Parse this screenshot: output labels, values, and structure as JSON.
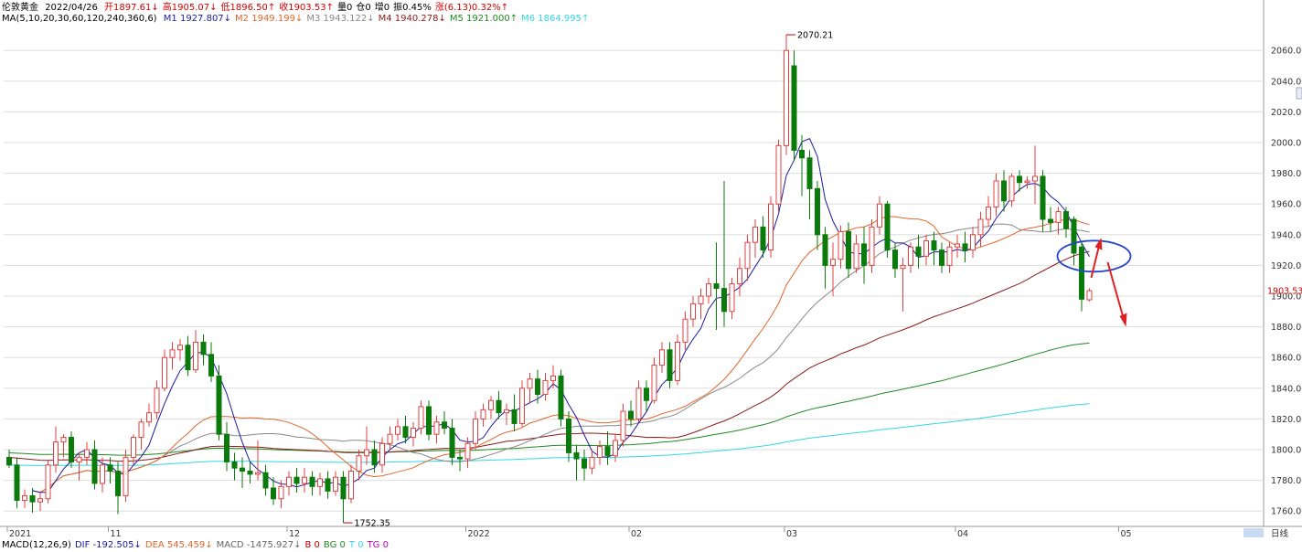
{
  "header": {
    "symbol": "伦敦黄金",
    "date": "2022/04/26",
    "stats": [
      {
        "text": "开1897.61↓",
        "color": "#d00000"
      },
      {
        "text": "高1905.07↓",
        "color": "#d00000"
      },
      {
        "text": "低1896.50↑",
        "color": "#d00000"
      },
      {
        "text": "收1903.53↑",
        "color": "#d00000"
      },
      {
        "text": "量0",
        "color": "#000000"
      },
      {
        "text": "仓0",
        "color": "#000000"
      },
      {
        "text": "增0",
        "color": "#000000"
      },
      {
        "text": "振0.45%",
        "color": "#000000"
      },
      {
        "text": "涨(6.13)0.32%↑",
        "color": "#d00000"
      }
    ]
  },
  "ma_legend": {
    "label": "MA(5,10,20,30,60,120,240,360,6)",
    "items": [
      {
        "text": "M1 1927.807↓",
        "color": "#1a1aa0"
      },
      {
        "text": "M2 1949.199↓",
        "color": "#e0662a"
      },
      {
        "text": "M3 1943.122↓",
        "color": "#888888"
      },
      {
        "text": "M4 1940.278↓",
        "color": "#8b1a1a"
      },
      {
        "text": "M5 1921.000↑",
        "color": "#1f8a1f"
      },
      {
        "text": "M6 1864.995↑",
        "color": "#33d6e6"
      }
    ]
  },
  "macd_legend": {
    "items": [
      {
        "text": "MACD(12,26,9)",
        "color": "#000000"
      },
      {
        "text": "DIF -192.505↓",
        "color": "#1a1aa0"
      },
      {
        "text": "DEA 545.459↓",
        "color": "#e0662a"
      },
      {
        "text": "MACD -1475.927↓",
        "color": "#666666"
      },
      {
        "text": "B 0",
        "color": "#c00000"
      },
      {
        "text": "BG 0",
        "color": "#1f8a1f"
      },
      {
        "text": "T 0",
        "color": "#33d6e6"
      },
      {
        "text": "TG 0",
        "color": "#c000c0"
      }
    ]
  },
  "period_label": "日线",
  "price_tag": "1903.53",
  "colors": {
    "up": "#e04040",
    "down": "#0a7a0a",
    "grid": "#dddddd",
    "m1": "#1a1aa0",
    "m2": "#e0662a",
    "m3": "#888888",
    "m4": "#8b1a1a",
    "m5": "#1f8a1f",
    "m6": "#33d6e6",
    "annotation_circle": "#2244cc",
    "annotation_arrow": "#e02020"
  },
  "chart_data": {
    "type": "candlestick",
    "title": "伦敦黄金",
    "ylim": [
      1750,
      2075
    ],
    "ticks_y": [
      1760,
      1780,
      1800,
      1820,
      1840,
      1860,
      1880,
      1900,
      1920,
      1940,
      1960,
      1980,
      2000,
      2020,
      2040,
      2060
    ],
    "x_month_labels": [
      {
        "label": "2021",
        "index": 0
      },
      {
        "label": "11",
        "index": 13
      },
      {
        "label": "12",
        "index": 36
      },
      {
        "label": "2022",
        "index": 59
      },
      {
        "label": "02",
        "index": 80
      },
      {
        "label": "03",
        "index": 100
      },
      {
        "label": "04",
        "index": 122
      },
      {
        "label": "05",
        "index": 143
      }
    ],
    "high_annotation": {
      "label": "2070.21",
      "value": 2070.21
    },
    "low_annotation": {
      "label": "1752.35",
      "value": 1752.35
    },
    "candles": [
      {
        "o": 1795,
        "h": 1800,
        "c": 1790,
        "l": 1788
      },
      {
        "o": 1790,
        "h": 1795,
        "c": 1767,
        "l": 1762
      },
      {
        "o": 1767,
        "h": 1774,
        "c": 1770,
        "l": 1762
      },
      {
        "o": 1770,
        "h": 1775,
        "c": 1766,
        "l": 1759
      },
      {
        "o": 1766,
        "h": 1772,
        "c": 1768,
        "l": 1760
      },
      {
        "o": 1768,
        "h": 1793,
        "c": 1790,
        "l": 1765
      },
      {
        "o": 1790,
        "h": 1815,
        "c": 1805,
        "l": 1785
      },
      {
        "o": 1805,
        "h": 1810,
        "c": 1808,
        "l": 1795
      },
      {
        "o": 1808,
        "h": 1812,
        "c": 1792,
        "l": 1788
      },
      {
        "o": 1792,
        "h": 1798,
        "c": 1795,
        "l": 1780
      },
      {
        "o": 1795,
        "h": 1805,
        "c": 1800,
        "l": 1790
      },
      {
        "o": 1800,
        "h": 1806,
        "c": 1778,
        "l": 1774
      },
      {
        "o": 1778,
        "h": 1795,
        "c": 1790,
        "l": 1772
      },
      {
        "o": 1790,
        "h": 1795,
        "c": 1786,
        "l": 1778
      },
      {
        "o": 1786,
        "h": 1792,
        "c": 1770,
        "l": 1758
      },
      {
        "o": 1770,
        "h": 1800,
        "c": 1795,
        "l": 1766
      },
      {
        "o": 1795,
        "h": 1810,
        "c": 1808,
        "l": 1790
      },
      {
        "o": 1808,
        "h": 1820,
        "c": 1818,
        "l": 1800
      },
      {
        "o": 1818,
        "h": 1830,
        "c": 1824,
        "l": 1815
      },
      {
        "o": 1824,
        "h": 1845,
        "c": 1840,
        "l": 1820
      },
      {
        "o": 1840,
        "h": 1865,
        "c": 1860,
        "l": 1838
      },
      {
        "o": 1860,
        "h": 1870,
        "c": 1865,
        "l": 1852
      },
      {
        "o": 1865,
        "h": 1872,
        "c": 1868,
        "l": 1858
      },
      {
        "o": 1868,
        "h": 1874,
        "c": 1852,
        "l": 1848
      },
      {
        "o": 1852,
        "h": 1878,
        "c": 1870,
        "l": 1850
      },
      {
        "o": 1870,
        "h": 1875,
        "c": 1862,
        "l": 1855
      },
      {
        "o": 1862,
        "h": 1870,
        "c": 1848,
        "l": 1844
      },
      {
        "o": 1848,
        "h": 1855,
        "c": 1810,
        "l": 1806
      },
      {
        "o": 1810,
        "h": 1818,
        "c": 1792,
        "l": 1786
      },
      {
        "o": 1792,
        "h": 1798,
        "c": 1788,
        "l": 1780
      },
      {
        "o": 1788,
        "h": 1795,
        "c": 1786,
        "l": 1775
      },
      {
        "o": 1786,
        "h": 1792,
        "c": 1784,
        "l": 1778
      },
      {
        "o": 1784,
        "h": 1806,
        "c": 1785,
        "l": 1780
      },
      {
        "o": 1785,
        "h": 1790,
        "c": 1775,
        "l": 1770
      },
      {
        "o": 1775,
        "h": 1782,
        "c": 1768,
        "l": 1764
      },
      {
        "o": 1768,
        "h": 1780,
        "c": 1776,
        "l": 1762
      },
      {
        "o": 1776,
        "h": 1786,
        "c": 1782,
        "l": 1770
      },
      {
        "o": 1782,
        "h": 1788,
        "c": 1778,
        "l": 1772
      },
      {
        "o": 1778,
        "h": 1788,
        "c": 1782,
        "l": 1772
      },
      {
        "o": 1782,
        "h": 1786,
        "c": 1776,
        "l": 1770
      },
      {
        "o": 1776,
        "h": 1785,
        "c": 1781,
        "l": 1770
      },
      {
        "o": 1781,
        "h": 1786,
        "c": 1773,
        "l": 1768
      },
      {
        "o": 1773,
        "h": 1786,
        "c": 1782,
        "l": 1770
      },
      {
        "o": 1782,
        "h": 1786,
        "c": 1768,
        "l": 1752.35
      },
      {
        "o": 1768,
        "h": 1790,
        "c": 1786,
        "l": 1765
      },
      {
        "o": 1786,
        "h": 1800,
        "c": 1796,
        "l": 1780
      },
      {
        "o": 1796,
        "h": 1815,
        "c": 1800,
        "l": 1790
      },
      {
        "o": 1800,
        "h": 1806,
        "c": 1790,
        "l": 1785
      },
      {
        "o": 1790,
        "h": 1808,
        "c": 1804,
        "l": 1785
      },
      {
        "o": 1804,
        "h": 1815,
        "c": 1810,
        "l": 1800
      },
      {
        "o": 1810,
        "h": 1820,
        "c": 1815,
        "l": 1806
      },
      {
        "o": 1815,
        "h": 1822,
        "c": 1808,
        "l": 1804
      },
      {
        "o": 1808,
        "h": 1818,
        "c": 1814,
        "l": 1802
      },
      {
        "o": 1814,
        "h": 1832,
        "c": 1828,
        "l": 1810
      },
      {
        "o": 1828,
        "h": 1832,
        "c": 1810,
        "l": 1806
      },
      {
        "o": 1810,
        "h": 1822,
        "c": 1818,
        "l": 1804
      },
      {
        "o": 1818,
        "h": 1825,
        "c": 1814,
        "l": 1810
      },
      {
        "o": 1814,
        "h": 1820,
        "c": 1795,
        "l": 1790
      },
      {
        "o": 1795,
        "h": 1800,
        "c": 1794,
        "l": 1786
      },
      {
        "o": 1794,
        "h": 1808,
        "c": 1804,
        "l": 1788
      },
      {
        "o": 1804,
        "h": 1825,
        "c": 1820,
        "l": 1800
      },
      {
        "o": 1820,
        "h": 1830,
        "c": 1826,
        "l": 1815
      },
      {
        "o": 1826,
        "h": 1835,
        "c": 1832,
        "l": 1820
      },
      {
        "o": 1832,
        "h": 1838,
        "c": 1824,
        "l": 1820
      },
      {
        "o": 1824,
        "h": 1830,
        "c": 1826,
        "l": 1816
      },
      {
        "o": 1826,
        "h": 1836,
        "c": 1817,
        "l": 1812
      },
      {
        "o": 1817,
        "h": 1845,
        "c": 1840,
        "l": 1815
      },
      {
        "o": 1840,
        "h": 1850,
        "c": 1846,
        "l": 1830
      },
      {
        "o": 1846,
        "h": 1852,
        "c": 1836,
        "l": 1830
      },
      {
        "o": 1836,
        "h": 1850,
        "c": 1845,
        "l": 1832
      },
      {
        "o": 1845,
        "h": 1855,
        "c": 1848,
        "l": 1840
      },
      {
        "o": 1848,
        "h": 1852,
        "c": 1820,
        "l": 1815
      },
      {
        "o": 1820,
        "h": 1825,
        "c": 1798,
        "l": 1792
      },
      {
        "o": 1798,
        "h": 1803,
        "c": 1794,
        "l": 1780
      },
      {
        "o": 1794,
        "h": 1800,
        "c": 1788,
        "l": 1780
      },
      {
        "o": 1788,
        "h": 1800,
        "c": 1795,
        "l": 1784
      },
      {
        "o": 1795,
        "h": 1806,
        "c": 1802,
        "l": 1790
      },
      {
        "o": 1802,
        "h": 1812,
        "c": 1796,
        "l": 1790
      },
      {
        "o": 1796,
        "h": 1810,
        "c": 1806,
        "l": 1792
      },
      {
        "o": 1806,
        "h": 1830,
        "c": 1825,
        "l": 1802
      },
      {
        "o": 1825,
        "h": 1832,
        "c": 1820,
        "l": 1815
      },
      {
        "o": 1820,
        "h": 1845,
        "c": 1840,
        "l": 1818
      },
      {
        "o": 1840,
        "h": 1845,
        "c": 1832,
        "l": 1825
      },
      {
        "o": 1832,
        "h": 1860,
        "c": 1855,
        "l": 1830
      },
      {
        "o": 1855,
        "h": 1870,
        "c": 1865,
        "l": 1850
      },
      {
        "o": 1865,
        "h": 1870,
        "c": 1845,
        "l": 1840
      },
      {
        "o": 1845,
        "h": 1875,
        "c": 1870,
        "l": 1842
      },
      {
        "o": 1870,
        "h": 1890,
        "c": 1885,
        "l": 1865
      },
      {
        "o": 1885,
        "h": 1900,
        "c": 1895,
        "l": 1880
      },
      {
        "o": 1895,
        "h": 1905,
        "c": 1900,
        "l": 1885
      },
      {
        "o": 1900,
        "h": 1912,
        "c": 1908,
        "l": 1895
      },
      {
        "o": 1908,
        "h": 1935,
        "c": 1905,
        "l": 1878
      },
      {
        "o": 1905,
        "h": 1975,
        "c": 1890,
        "l": 1880
      },
      {
        "o": 1890,
        "h": 1912,
        "c": 1908,
        "l": 1885
      },
      {
        "o": 1908,
        "h": 1925,
        "c": 1918,
        "l": 1900
      },
      {
        "o": 1918,
        "h": 1940,
        "c": 1935,
        "l": 1910
      },
      {
        "o": 1935,
        "h": 1950,
        "c": 1945,
        "l": 1925
      },
      {
        "o": 1945,
        "h": 1952,
        "c": 1930,
        "l": 1925
      },
      {
        "o": 1930,
        "h": 1965,
        "c": 1960,
        "l": 1925
      },
      {
        "o": 1960,
        "h": 2002,
        "c": 1998,
        "l": 1955
      },
      {
        "o": 1998,
        "h": 2070.21,
        "c": 2060,
        "l": 1992
      },
      {
        "o": 2050,
        "h": 2060,
        "c": 1995,
        "l": 1988
      },
      {
        "o": 1995,
        "h": 2005,
        "c": 1990,
        "l": 1965
      },
      {
        "o": 1990,
        "h": 1995,
        "c": 1970,
        "l": 1950
      },
      {
        "o": 1970,
        "h": 1975,
        "c": 1940,
        "l": 1930
      },
      {
        "o": 1940,
        "h": 1945,
        "c": 1920,
        "l": 1905
      },
      {
        "o": 1920,
        "h": 1935,
        "c": 1924,
        "l": 1900
      },
      {
        "o": 1924,
        "h": 1946,
        "c": 1942,
        "l": 1918
      },
      {
        "o": 1942,
        "h": 1948,
        "c": 1918,
        "l": 1912
      },
      {
        "o": 1918,
        "h": 1940,
        "c": 1934,
        "l": 1915
      },
      {
        "o": 1934,
        "h": 1945,
        "c": 1920,
        "l": 1908
      },
      {
        "o": 1920,
        "h": 1950,
        "c": 1945,
        "l": 1915
      },
      {
        "o": 1945,
        "h": 1965,
        "c": 1960,
        "l": 1940
      },
      {
        "o": 1960,
        "h": 1962,
        "c": 1930,
        "l": 1925
      },
      {
        "o": 1930,
        "h": 1935,
        "c": 1918,
        "l": 1912
      },
      {
        "o": 1918,
        "h": 1925,
        "c": 1920,
        "l": 1890
      },
      {
        "o": 1920,
        "h": 1935,
        "c": 1932,
        "l": 1915
      },
      {
        "o": 1932,
        "h": 1940,
        "c": 1926,
        "l": 1918
      },
      {
        "o": 1926,
        "h": 1940,
        "c": 1936,
        "l": 1920
      },
      {
        "o": 1936,
        "h": 1942,
        "c": 1930,
        "l": 1920
      },
      {
        "o": 1930,
        "h": 1935,
        "c": 1920,
        "l": 1915
      },
      {
        "o": 1920,
        "h": 1935,
        "c": 1932,
        "l": 1915
      },
      {
        "o": 1932,
        "h": 1940,
        "c": 1934,
        "l": 1925
      },
      {
        "o": 1934,
        "h": 1942,
        "c": 1930,
        "l": 1922
      },
      {
        "o": 1930,
        "h": 1945,
        "c": 1940,
        "l": 1925
      },
      {
        "o": 1940,
        "h": 1955,
        "c": 1950,
        "l": 1932
      },
      {
        "o": 1950,
        "h": 1965,
        "c": 1958,
        "l": 1945
      },
      {
        "o": 1958,
        "h": 1980,
        "c": 1975,
        "l": 1952
      },
      {
        "o": 1975,
        "h": 1982,
        "c": 1962,
        "l": 1955
      },
      {
        "o": 1962,
        "h": 1980,
        "c": 1978,
        "l": 1958
      },
      {
        "o": 1978,
        "h": 1982,
        "c": 1974,
        "l": 1968
      },
      {
        "o": 1974,
        "h": 1978,
        "c": 1975,
        "l": 1970
      },
      {
        "o": 1975,
        "h": 1998,
        "c": 1978,
        "l": 1960
      },
      {
        "o": 1978,
        "h": 1982,
        "c": 1950,
        "l": 1942
      },
      {
        "o": 1950,
        "h": 1958,
        "c": 1948,
        "l": 1942
      },
      {
        "o": 1948,
        "h": 1958,
        "c": 1955,
        "l": 1940
      },
      {
        "o": 1955,
        "h": 1958,
        "c": 1944,
        "l": 1938
      },
      {
        "o": 1950,
        "h": 1952,
        "c": 1928,
        "l": 1920
      },
      {
        "o": 1932,
        "h": 1936,
        "c": 1898,
        "l": 1890
      },
      {
        "o": 1897.61,
        "h": 1905.07,
        "c": 1903.53,
        "l": 1896.5
      }
    ]
  }
}
